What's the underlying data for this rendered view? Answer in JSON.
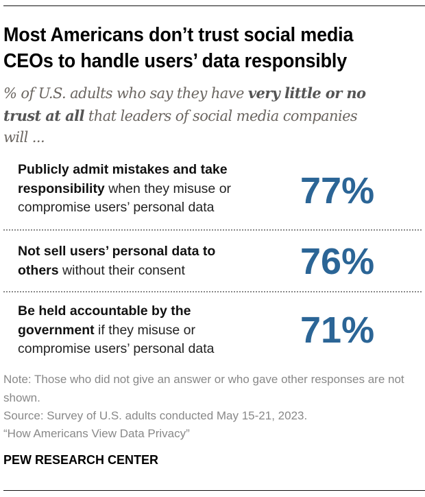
{
  "title_lines": [
    "Most Americans don’t trust social media",
    "CEOs to handle users’ data responsibly"
  ],
  "subtitle": {
    "line1_plain": "% of U.S. adults who say they have ",
    "line1_bold": "very little or no",
    "line2_bold": "trust at all",
    "line2_plain": " that leaders of social media companies",
    "line3_plain": "will ..."
  },
  "chart_data": {
    "type": "table",
    "title": "Most Americans don’t trust social media CEOs to handle users’ data responsibly",
    "accent_color": "#2b6596",
    "rows": [
      {
        "bold": "Publicly admit mistakes and take responsibility",
        "rest": " when they misuse or compromise users’ personal data",
        "value": 77,
        "label": "77%"
      },
      {
        "bold": "Not sell users’ personal data to others",
        "rest": " without their consent",
        "value": 76,
        "label": "76%"
      },
      {
        "bold": "Be held accountable by the government",
        "rest": " if they misuse or compromise users’ personal data",
        "value": 71,
        "label": "71%"
      }
    ]
  },
  "note": "Note: Those who did not give an answer or who gave other responses are not shown.",
  "source": "Source: Survey of U.S. adults conducted May 15-21, 2023.",
  "report": "“How Americans View Data Privacy”",
  "logo": "PEW RESEARCH CENTER"
}
